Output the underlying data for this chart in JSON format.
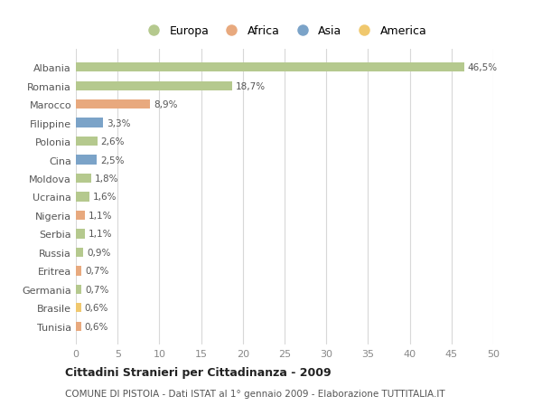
{
  "countries": [
    "Albania",
    "Romania",
    "Marocco",
    "Filippine",
    "Polonia",
    "Cina",
    "Moldova",
    "Ucraina",
    "Nigeria",
    "Serbia",
    "Russia",
    "Eritrea",
    "Germania",
    "Brasile",
    "Tunisia"
  ],
  "values": [
    46.5,
    18.7,
    8.9,
    3.3,
    2.6,
    2.5,
    1.8,
    1.6,
    1.1,
    1.1,
    0.9,
    0.7,
    0.7,
    0.6,
    0.6
  ],
  "labels": [
    "46,5%",
    "18,7%",
    "8,9%",
    "3,3%",
    "2,6%",
    "2,5%",
    "1,8%",
    "1,6%",
    "1,1%",
    "1,1%",
    "0,9%",
    "0,7%",
    "0,7%",
    "0,6%",
    "0,6%"
  ],
  "colors": [
    "#b5c98e",
    "#b5c98e",
    "#e8a97e",
    "#7ba3c8",
    "#b5c98e",
    "#7ba3c8",
    "#b5c98e",
    "#b5c98e",
    "#e8a97e",
    "#b5c98e",
    "#b5c98e",
    "#e8a97e",
    "#b5c98e",
    "#f0c86e",
    "#e8a97e"
  ],
  "legend": [
    {
      "label": "Europa",
      "color": "#b5c98e"
    },
    {
      "label": "Africa",
      "color": "#e8a97e"
    },
    {
      "label": "Asia",
      "color": "#7ba3c8"
    },
    {
      "label": "America",
      "color": "#f0c86e"
    }
  ],
  "title": "Cittadini Stranieri per Cittadinanza - 2009",
  "subtitle": "COMUNE DI PISTOIA - Dati ISTAT al 1° gennaio 2009 - Elaborazione TUTTITALIA.IT",
  "xlim": [
    0,
    50
  ],
  "xticks": [
    0,
    5,
    10,
    15,
    20,
    25,
    30,
    35,
    40,
    45,
    50
  ],
  "bg_color": "#ffffff",
  "grid_color": "#d8d8d8"
}
